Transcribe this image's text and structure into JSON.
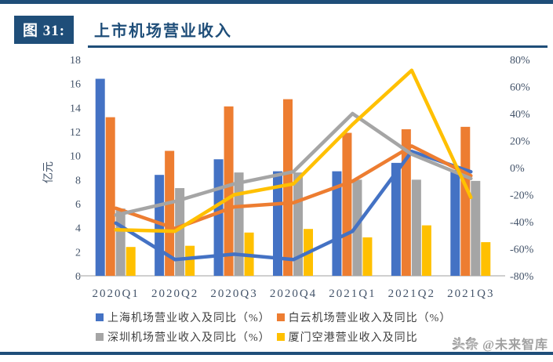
{
  "page": {
    "figure_label": "图 31:",
    "title": "上市机场营业收入",
    "watermark_badge": "头条",
    "watermark_handle": "@未来智库",
    "colors": {
      "navy": "#1F4E79",
      "blue": "#4472C4",
      "orange": "#ED7D31",
      "gray": "#A5A5A5",
      "yellow": "#FFC000",
      "axis_text": "#44546A",
      "axis_line": "#BFBFBF"
    }
  },
  "chart_data": {
    "type": "bar",
    "subtype": "grouped bars with overlaid YoY lines (dual axis)",
    "categories": [
      "2020Q1",
      "2020Q2",
      "2020Q3",
      "2020Q4",
      "2021Q1",
      "2021Q2",
      "2021Q3"
    ],
    "bar_series": [
      {
        "name": "上海机场营业收入",
        "color": "#4472C4",
        "values": [
          16.4,
          8.4,
          9.7,
          8.7,
          8.7,
          9.4,
          8.8
        ]
      },
      {
        "name": "白云机场营业收入",
        "color": "#ED7D31",
        "values": [
          13.2,
          10.4,
          14.1,
          14.7,
          11.9,
          12.2,
          12.4
        ]
      },
      {
        "name": "深圳机场营业收入",
        "color": "#A5A5A5",
        "values": [
          5.6,
          7.3,
          8.6,
          8.6,
          8.0,
          8.0,
          7.9
        ]
      },
      {
        "name": "厦门空港营业收入",
        "color": "#FFC000",
        "values": [
          2.4,
          2.5,
          3.6,
          3.9,
          3.2,
          4.2,
          2.8
        ]
      }
    ],
    "line_series": [
      {
        "name": "上海机场同比（%）",
        "color": "#4472C4",
        "values_pct": [
          -41,
          -68,
          -64,
          -68,
          -47,
          12,
          -3
        ]
      },
      {
        "name": "白云机场同比（%）",
        "color": "#ED7D31",
        "values_pct": [
          -30,
          -45,
          -29,
          -26,
          -10,
          16,
          -6
        ]
      },
      {
        "name": "深圳机场同比（%）",
        "color": "#A5A5A5",
        "values_pct": [
          -35,
          -25,
          -12,
          -3,
          40,
          10,
          -8
        ]
      },
      {
        "name": "厦门空港同比（%）",
        "color": "#FFC000",
        "values_pct": [
          -46,
          -47,
          -20,
          -12,
          32,
          72,
          -22
        ]
      }
    ],
    "left_axis": {
      "title": "亿元",
      "min": 0,
      "max": 18,
      "step": 2
    },
    "right_axis": {
      "min": -80,
      "max": 80,
      "step": 20,
      "suffix": "%"
    },
    "grid": "off",
    "legend_position": "bottom",
    "legend": [
      {
        "label": "上海机场营业收入及同比（%）",
        "color": "#4472C4"
      },
      {
        "label": "白云机场营业收入及同比（%）",
        "color": "#ED7D31"
      },
      {
        "label": "深圳机场营业收入及同比（%）",
        "color": "#A5A5A5"
      },
      {
        "label": "厦门空港营业收入及同比",
        "color": "#FFC000"
      }
    ],
    "legend_rows": [
      [
        0,
        1
      ],
      [
        2,
        3
      ]
    ]
  }
}
